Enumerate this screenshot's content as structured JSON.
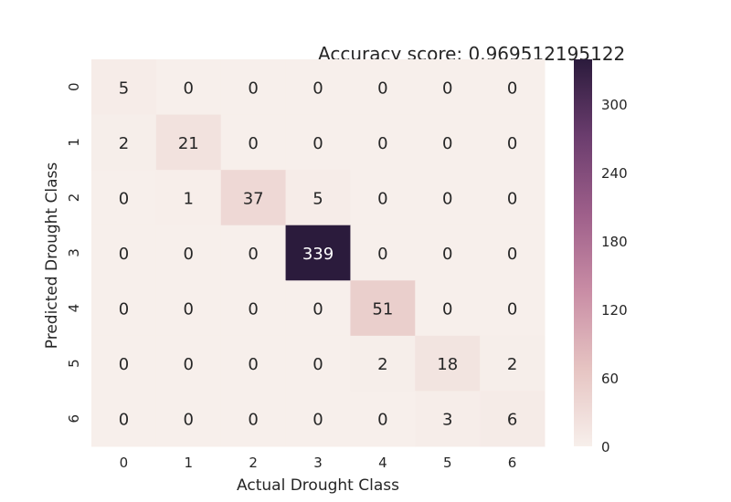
{
  "chart_data": {
    "type": "heatmap",
    "title": "Accuracy score: 0.969512195122",
    "xlabel": "Actual Drought Class",
    "ylabel": "Predicted Drought Class",
    "x_categories": [
      "0",
      "1",
      "2",
      "3",
      "4",
      "5",
      "6"
    ],
    "y_categories": [
      "0",
      "1",
      "2",
      "3",
      "4",
      "5",
      "6"
    ],
    "matrix": [
      [
        5,
        0,
        0,
        0,
        0,
        0,
        0
      ],
      [
        2,
        21,
        0,
        0,
        0,
        0,
        0
      ],
      [
        0,
        1,
        37,
        5,
        0,
        0,
        0
      ],
      [
        0,
        0,
        0,
        339,
        0,
        0,
        0
      ],
      [
        0,
        0,
        0,
        0,
        51,
        0,
        0
      ],
      [
        0,
        0,
        0,
        0,
        2,
        18,
        2
      ],
      [
        0,
        0,
        0,
        0,
        0,
        3,
        6
      ]
    ],
    "colorbar": {
      "min": 0,
      "max": 339,
      "ticks": [
        "0",
        "60",
        "120",
        "180",
        "240",
        "300"
      ],
      "colors": [
        "#f7efeb",
        "#e6c4c2",
        "#c98da5",
        "#9e5f8a",
        "#6b3d6e",
        "#2b1b3c"
      ]
    },
    "grid": false
  }
}
